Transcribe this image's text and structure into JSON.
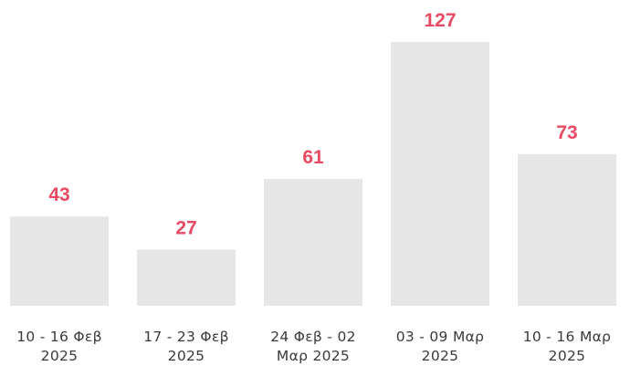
{
  "chart_data": {
    "type": "bar",
    "categories": [
      [
        "10 - 16 Φεβ",
        "2025"
      ],
      [
        "17 - 23 Φεβ",
        "2025"
      ],
      [
        "24 Φεβ - 02",
        "Μαρ 2025"
      ],
      [
        "03 - 09 Μαρ",
        "2025"
      ],
      [
        "10 - 16 Μαρ",
        "2025"
      ]
    ],
    "values": [
      43,
      27,
      61,
      127,
      73
    ],
    "title": "",
    "xlabel": "",
    "ylabel": "",
    "ylim": [
      0,
      127
    ],
    "grid": false,
    "legend": "none",
    "bar_color": "#e6e6e6",
    "value_label_color": "#e84a63",
    "category_label_color": "#3a3a3a"
  }
}
